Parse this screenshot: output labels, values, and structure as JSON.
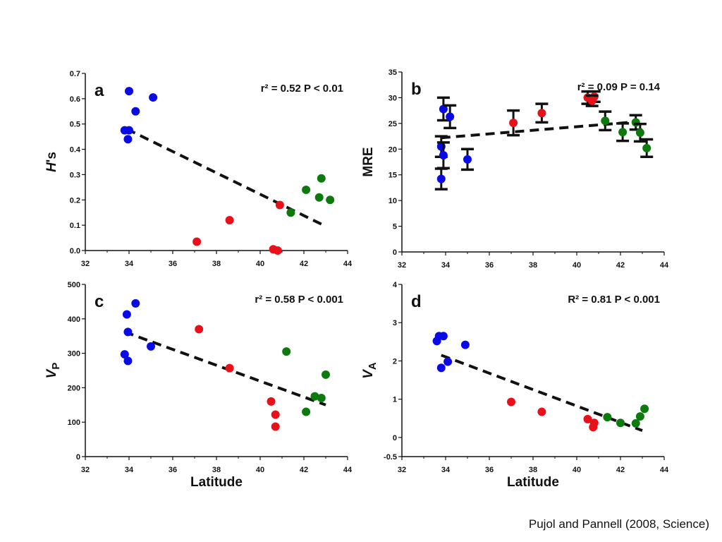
{
  "citation": "Pujol and Pannell (2008, Science)",
  "colors": {
    "blue": "#0a0ae6",
    "red": "#e8111a",
    "green": "#0c7a0c",
    "axis": "#111111",
    "fit": "#111111"
  },
  "chart_data": [
    {
      "id": "a",
      "type": "scatter",
      "panel_label": "a",
      "stat_text": "r² = 0.52 P < 0.01",
      "ylabel": "H's",
      "xlabel": "",
      "xlim": [
        32,
        44
      ],
      "ylim": [
        0,
        0.7
      ],
      "xticks": [
        "32",
        "34",
        "36",
        "38",
        "40",
        "42",
        "44"
      ],
      "yticks": [
        "0.0",
        "0.1",
        "0.2",
        "0.3",
        "0.4",
        "0.5",
        "0.6",
        "0.7"
      ],
      "ytick_values": [
        0,
        0.1,
        0.2,
        0.3,
        0.4,
        0.5,
        0.6,
        0.7
      ],
      "fit_line": [
        [
          33.9,
          0.48
        ],
        [
          42.9,
          0.1
        ]
      ],
      "series": [
        {
          "color": "blue",
          "x": [
            34.0,
            35.1,
            34.3,
            33.8,
            34.0,
            33.95
          ],
          "y": [
            0.63,
            0.605,
            0.55,
            0.475,
            0.475,
            0.44
          ]
        },
        {
          "color": "red",
          "x": [
            37.1,
            38.6,
            40.9,
            40.6,
            40.8
          ],
          "y": [
            0.035,
            0.12,
            0.18,
            0.005,
            0.0
          ]
        },
        {
          "color": "green",
          "x": [
            41.4,
            42.1,
            42.8,
            42.7,
            43.2
          ],
          "y": [
            0.15,
            0.24,
            0.285,
            0.21,
            0.2
          ]
        }
      ]
    },
    {
      "id": "b",
      "type": "scatter",
      "panel_label": "b",
      "stat_text": "r² = 0.09 P = 0.14",
      "ylabel": "MRE",
      "xlabel": "",
      "xlim": [
        32,
        44
      ],
      "ylim": [
        0,
        35
      ],
      "xticks": [
        "32",
        "34",
        "36",
        "38",
        "40",
        "42",
        "44"
      ],
      "yticks": [
        "0",
        "5",
        "10",
        "15",
        "20",
        "25",
        "30",
        "35"
      ],
      "ytick_values": [
        0,
        5,
        10,
        15,
        20,
        25,
        30,
        35
      ],
      "fit_line": [
        [
          33.8,
          22.2
        ],
        [
          42.7,
          25.3
        ]
      ],
      "series": [
        {
          "color": "blue",
          "x": [
            33.9,
            34.2,
            33.8,
            33.9,
            33.8,
            35.0
          ],
          "y": [
            27.8,
            26.3,
            20.5,
            18.8,
            14.2,
            18.0
          ],
          "err": [
            2.2,
            2.2,
            2.0,
            2.5,
            2.0,
            2.0
          ]
        },
        {
          "color": "red",
          "x": [
            37.1,
            38.4,
            40.5,
            40.8,
            40.7
          ],
          "y": [
            25.1,
            27.0,
            30.0,
            30.2,
            29.4
          ],
          "err": [
            2.4,
            1.8,
            1.2,
            1.0,
            1.0
          ]
        },
        {
          "color": "green",
          "x": [
            41.3,
            42.1,
            42.7,
            42.9,
            43.2
          ],
          "y": [
            25.5,
            23.3,
            25.2,
            23.2,
            20.2
          ],
          "err": [
            1.8,
            1.7,
            1.4,
            1.7,
            1.7
          ]
        }
      ]
    },
    {
      "id": "c",
      "type": "scatter",
      "panel_label": "c",
      "stat_text": "r² = 0.58 P < 0.001",
      "ylabel": "VP",
      "xlabel": "Latitude",
      "xlim": [
        32,
        44
      ],
      "ylim": [
        0,
        500
      ],
      "xticks": [
        "32",
        "34",
        "36",
        "38",
        "40",
        "42",
        "44"
      ],
      "yticks": [
        "0",
        "100",
        "200",
        "300",
        "400",
        "500"
      ],
      "ytick_values": [
        0,
        100,
        200,
        300,
        400,
        500
      ],
      "fit_line": [
        [
          33.8,
          362
        ],
        [
          43.0,
          150
        ]
      ],
      "series": [
        {
          "color": "blue",
          "x": [
            34.3,
            33.9,
            33.95,
            33.8,
            33.95,
            35.0
          ],
          "y": [
            445,
            413,
            362,
            297,
            278,
            320
          ]
        },
        {
          "color": "red",
          "x": [
            37.2,
            38.6,
            40.5,
            40.7,
            40.7
          ],
          "y": [
            370,
            257,
            160,
            122,
            87
          ]
        },
        {
          "color": "green",
          "x": [
            41.2,
            42.5,
            42.8,
            43.0,
            42.1
          ],
          "y": [
            305,
            175,
            170,
            238,
            130
          ]
        }
      ]
    },
    {
      "id": "d",
      "type": "scatter",
      "panel_label": "d",
      "stat_text": "R² = 0.81 P < 0.001",
      "ylabel": "VA",
      "xlabel": "Latitude",
      "xlim": [
        32,
        44
      ],
      "ylim": [
        -0.5,
        4
      ],
      "xticks": [
        "32",
        "34",
        "36",
        "38",
        "40",
        "42",
        "44"
      ],
      "yticks": [
        "-0.5",
        "0",
        "1",
        "2",
        "3",
        "4"
      ],
      "ytick_values": [
        -0.5,
        0,
        1,
        2,
        3,
        4
      ],
      "fit_line": [
        [
          33.8,
          2.15
        ],
        [
          43.0,
          0.18
        ]
      ],
      "series": [
        {
          "color": "blue",
          "x": [
            33.7,
            33.9,
            33.6,
            34.1,
            33.8,
            34.9
          ],
          "y": [
            2.65,
            2.65,
            2.52,
            1.98,
            1.82,
            2.42
          ]
        },
        {
          "color": "red",
          "x": [
            37.0,
            38.4,
            40.5,
            40.8,
            40.75
          ],
          "y": [
            0.93,
            0.67,
            0.48,
            0.38,
            0.27
          ]
        },
        {
          "color": "green",
          "x": [
            41.4,
            42.0,
            42.7,
            42.9,
            43.1
          ],
          "y": [
            0.53,
            0.38,
            0.37,
            0.55,
            0.75
          ]
        }
      ]
    }
  ]
}
